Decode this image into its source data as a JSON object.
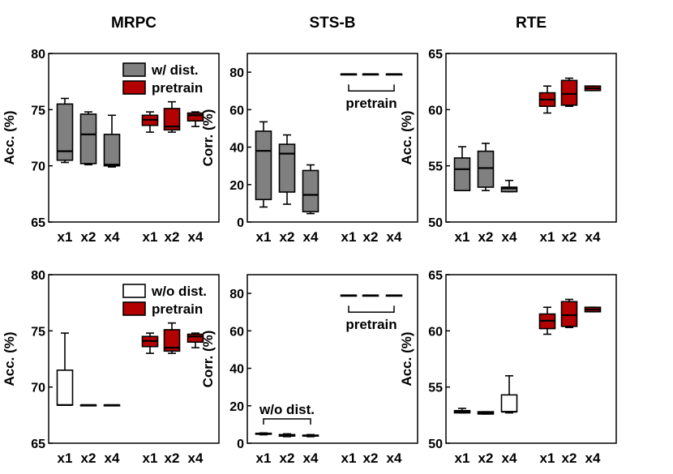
{
  "colors": {
    "gray_box": "#808080",
    "red_box": "#b30000",
    "white_box": "#ffffff",
    "line": "#000000"
  },
  "chart_data": [
    {
      "type": "box",
      "title": "MRPC",
      "ylabel": "Acc. (%)",
      "ylim": [
        65,
        80
      ],
      "yticks": [
        "65",
        "70",
        "75",
        "80"
      ],
      "legend": [
        {
          "label": "w/ dist.",
          "fill": "gray"
        },
        {
          "label": "pretrain",
          "fill": "red"
        }
      ],
      "groups": [
        {
          "series": "w/ dist.",
          "fill": "gray",
          "boxes": [
            {
              "x": "x1",
              "min": 70.3,
              "q1": 70.5,
              "median": 71.3,
              "q3": 75.5,
              "max": 76.0
            },
            {
              "x": "x2",
              "min": 70.1,
              "q1": 70.2,
              "median": 72.8,
              "q3": 74.6,
              "max": 74.8
            },
            {
              "x": "x4",
              "min": 69.9,
              "q1": 70.0,
              "median": 70.1,
              "q3": 72.8,
              "max": 74.5
            }
          ]
        },
        {
          "series": "pretrain",
          "fill": "red",
          "boxes": [
            {
              "x": "x1",
              "min": 73.0,
              "q1": 73.6,
              "median": 74.1,
              "q3": 74.5,
              "max": 74.8
            },
            {
              "x": "x2",
              "min": 73.0,
              "q1": 73.2,
              "median": 73.5,
              "q3": 75.1,
              "max": 75.7
            },
            {
              "x": "x4",
              "min": 73.5,
              "q1": 74.0,
              "median": 74.5,
              "q3": 74.7,
              "max": 74.8
            }
          ]
        }
      ]
    },
    {
      "type": "box",
      "title": "STS-B",
      "ylabel": "Corr. (%)",
      "ylim": [
        0,
        90
      ],
      "yticks": [
        "0",
        "20",
        "40",
        "60",
        "80"
      ],
      "legend": [],
      "bracket_label": "pretrain",
      "bracket_group": 1,
      "bracket_y": 70,
      "groups": [
        {
          "series": "w/ dist.",
          "fill": "gray",
          "boxes": [
            {
              "x": "x1",
              "min": 8,
              "q1": 12,
              "median": 38,
              "q3": 48.5,
              "max": 53.5
            },
            {
              "x": "x2",
              "min": 9.5,
              "q1": 16,
              "median": 36.5,
              "q3": 41.5,
              "max": 46.5
            },
            {
              "x": "x4",
              "min": 4.5,
              "q1": 5.5,
              "median": 14.5,
              "q3": 27.5,
              "max": 30.5
            }
          ]
        },
        {
          "series": "pretrain",
          "fill": "none",
          "boxes": [
            {
              "x": "x1",
              "min": 79,
              "q1": 79,
              "median": 79,
              "q3": 79,
              "max": 79
            },
            {
              "x": "x2",
              "min": 79,
              "q1": 79,
              "median": 79,
              "q3": 79,
              "max": 79
            },
            {
              "x": "x4",
              "min": 79,
              "q1": 79,
              "median": 79,
              "q3": 79,
              "max": 79
            }
          ]
        }
      ]
    },
    {
      "type": "box",
      "title": "RTE",
      "ylabel": "Acc. (%)",
      "ylim": [
        50,
        65
      ],
      "yticks": [
        "50",
        "55",
        "60",
        "65"
      ],
      "legend": [],
      "groups": [
        {
          "series": "w/ dist.",
          "fill": "gray",
          "boxes": [
            {
              "x": "x1",
              "min": 52.8,
              "q1": 52.8,
              "median": 54.7,
              "q3": 55.7,
              "max": 56.7
            },
            {
              "x": "x2",
              "min": 52.8,
              "q1": 53.1,
              "median": 54.8,
              "q3": 56.3,
              "max": 57.0
            },
            {
              "x": "x4",
              "min": 52.7,
              "q1": 52.7,
              "median": 53.0,
              "q3": 53.1,
              "max": 53.7
            }
          ]
        },
        {
          "series": "pretrain",
          "fill": "red",
          "boxes": [
            {
              "x": "x1",
              "min": 59.7,
              "q1": 60.3,
              "median": 60.9,
              "q3": 61.5,
              "max": 62.1
            },
            {
              "x": "x2",
              "min": 60.3,
              "q1": 60.4,
              "median": 61.4,
              "q3": 62.6,
              "max": 62.8
            },
            {
              "x": "x4",
              "min": 61.7,
              "q1": 61.7,
              "median": 61.9,
              "q3": 62.1,
              "max": 62.1
            }
          ]
        }
      ]
    },
    {
      "type": "box",
      "title": "",
      "ylabel": "Acc. (%)",
      "ylim": [
        65,
        80
      ],
      "yticks": [
        "65",
        "70",
        "75",
        "80"
      ],
      "legend": [
        {
          "label": "w/o dist.",
          "fill": "white"
        },
        {
          "label": "pretrain",
          "fill": "red"
        }
      ],
      "groups": [
        {
          "series": "w/o dist.",
          "fill": "white",
          "boxes": [
            {
              "x": "x1",
              "min": 68.4,
              "q1": 68.4,
              "median": 68.4,
              "q3": 71.5,
              "max": 74.8
            },
            {
              "x": "x2",
              "min": 68.4,
              "q1": 68.4,
              "median": 68.4,
              "q3": 68.4,
              "max": 68.4
            },
            {
              "x": "x4",
              "min": 68.4,
              "q1": 68.4,
              "median": 68.4,
              "q3": 68.4,
              "max": 68.4
            }
          ]
        },
        {
          "series": "pretrain",
          "fill": "red",
          "boxes": [
            {
              "x": "x1",
              "min": 73.0,
              "q1": 73.6,
              "median": 74.1,
              "q3": 74.5,
              "max": 74.8
            },
            {
              "x": "x2",
              "min": 73.0,
              "q1": 73.2,
              "median": 73.5,
              "q3": 75.1,
              "max": 75.7
            },
            {
              "x": "x4",
              "min": 73.5,
              "q1": 74.0,
              "median": 74.5,
              "q3": 74.7,
              "max": 74.8
            }
          ]
        }
      ]
    },
    {
      "type": "box",
      "title": "",
      "ylabel": "Corr. (%)",
      "ylim": [
        0,
        90
      ],
      "yticks": [
        "0",
        "20",
        "40",
        "60",
        "80"
      ],
      "legend": [],
      "bracket_label": "pretrain",
      "bracket_group": 1,
      "bracket_y": 70,
      "bracket2_label": "w/o dist.",
      "bracket2_group": 0,
      "bracket2_y": 13,
      "groups": [
        {
          "series": "w/o dist.",
          "fill": "none",
          "boxes": [
            {
              "x": "x1",
              "min": 4.5,
              "q1": 4.8,
              "median": 5.0,
              "q3": 5.3,
              "max": 5.5
            },
            {
              "x": "x2",
              "min": 3.5,
              "q1": 3.8,
              "median": 4.2,
              "q3": 4.6,
              "max": 5.0
            },
            {
              "x": "x4",
              "min": 3.5,
              "q1": 3.8,
              "median": 4.0,
              "q3": 4.3,
              "max": 4.6
            }
          ]
        },
        {
          "series": "pretrain",
          "fill": "none",
          "boxes": [
            {
              "x": "x1",
              "min": 79,
              "q1": 79,
              "median": 79,
              "q3": 79,
              "max": 79
            },
            {
              "x": "x2",
              "min": 79,
              "q1": 79,
              "median": 79,
              "q3": 79,
              "max": 79
            },
            {
              "x": "x4",
              "min": 79,
              "q1": 79,
              "median": 79,
              "q3": 79,
              "max": 79
            }
          ]
        }
      ]
    },
    {
      "type": "box",
      "title": "",
      "ylabel": "Acc. (%)",
      "ylim": [
        50,
        65
      ],
      "yticks": [
        "50",
        "55",
        "60",
        "65"
      ],
      "legend": [],
      "groups": [
        {
          "series": "w/o dist.",
          "fill": "white",
          "boxes": [
            {
              "x": "x1",
              "min": 52.7,
              "q1": 52.7,
              "median": 52.8,
              "q3": 52.9,
              "max": 53.1
            },
            {
              "x": "x2",
              "min": 52.6,
              "q1": 52.6,
              "median": 52.7,
              "q3": 52.8,
              "max": 52.8
            },
            {
              "x": "x4",
              "min": 52.7,
              "q1": 52.8,
              "median": 52.8,
              "q3": 54.3,
              "max": 56.0
            }
          ]
        },
        {
          "series": "pretrain",
          "fill": "red",
          "boxes": [
            {
              "x": "x1",
              "min": 59.7,
              "q1": 60.2,
              "median": 60.9,
              "q3": 61.5,
              "max": 62.1
            },
            {
              "x": "x2",
              "min": 60.3,
              "q1": 60.4,
              "median": 61.4,
              "q3": 62.6,
              "max": 62.8
            },
            {
              "x": "x4",
              "min": 61.7,
              "q1": 61.7,
              "median": 61.9,
              "q3": 62.1,
              "max": 62.1
            }
          ]
        }
      ]
    }
  ]
}
